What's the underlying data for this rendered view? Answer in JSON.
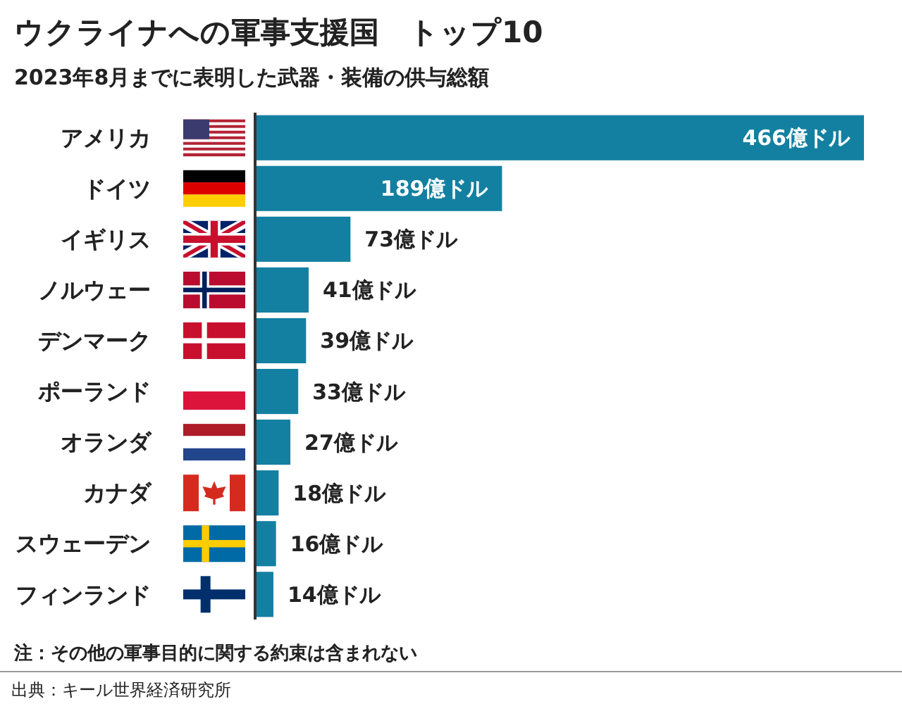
{
  "chart_data": {
    "type": "bar",
    "orientation": "horizontal",
    "title": "ウクライナへの軍事支援国　トップ10",
    "subtitle": "2023年8月までに表明した武器・装備の供与総額",
    "categories": [
      "アメリカ",
      "ドイツ",
      "イギリス",
      "ノルウェー",
      "デンマーク",
      "ポーランド",
      "オランダ",
      "カナダ",
      "スウェーデン",
      "フィンランド"
    ],
    "values": [
      466,
      189,
      73,
      41,
      39,
      33,
      27,
      18,
      16,
      14
    ],
    "color": "#1380a1",
    "value_labels": [
      "466億ドル",
      "189億ドル",
      "73億ドル",
      "41億ドル",
      "39億ドル",
      "33億ドル",
      "27億ドル",
      "18億ドル",
      "16億ドル",
      "14億ドル"
    ],
    "annotations": [
      "注：その他の軍事目的に関する約束は含まれない",
      "出典：キール世界経済研究所"
    ]
  }
}
